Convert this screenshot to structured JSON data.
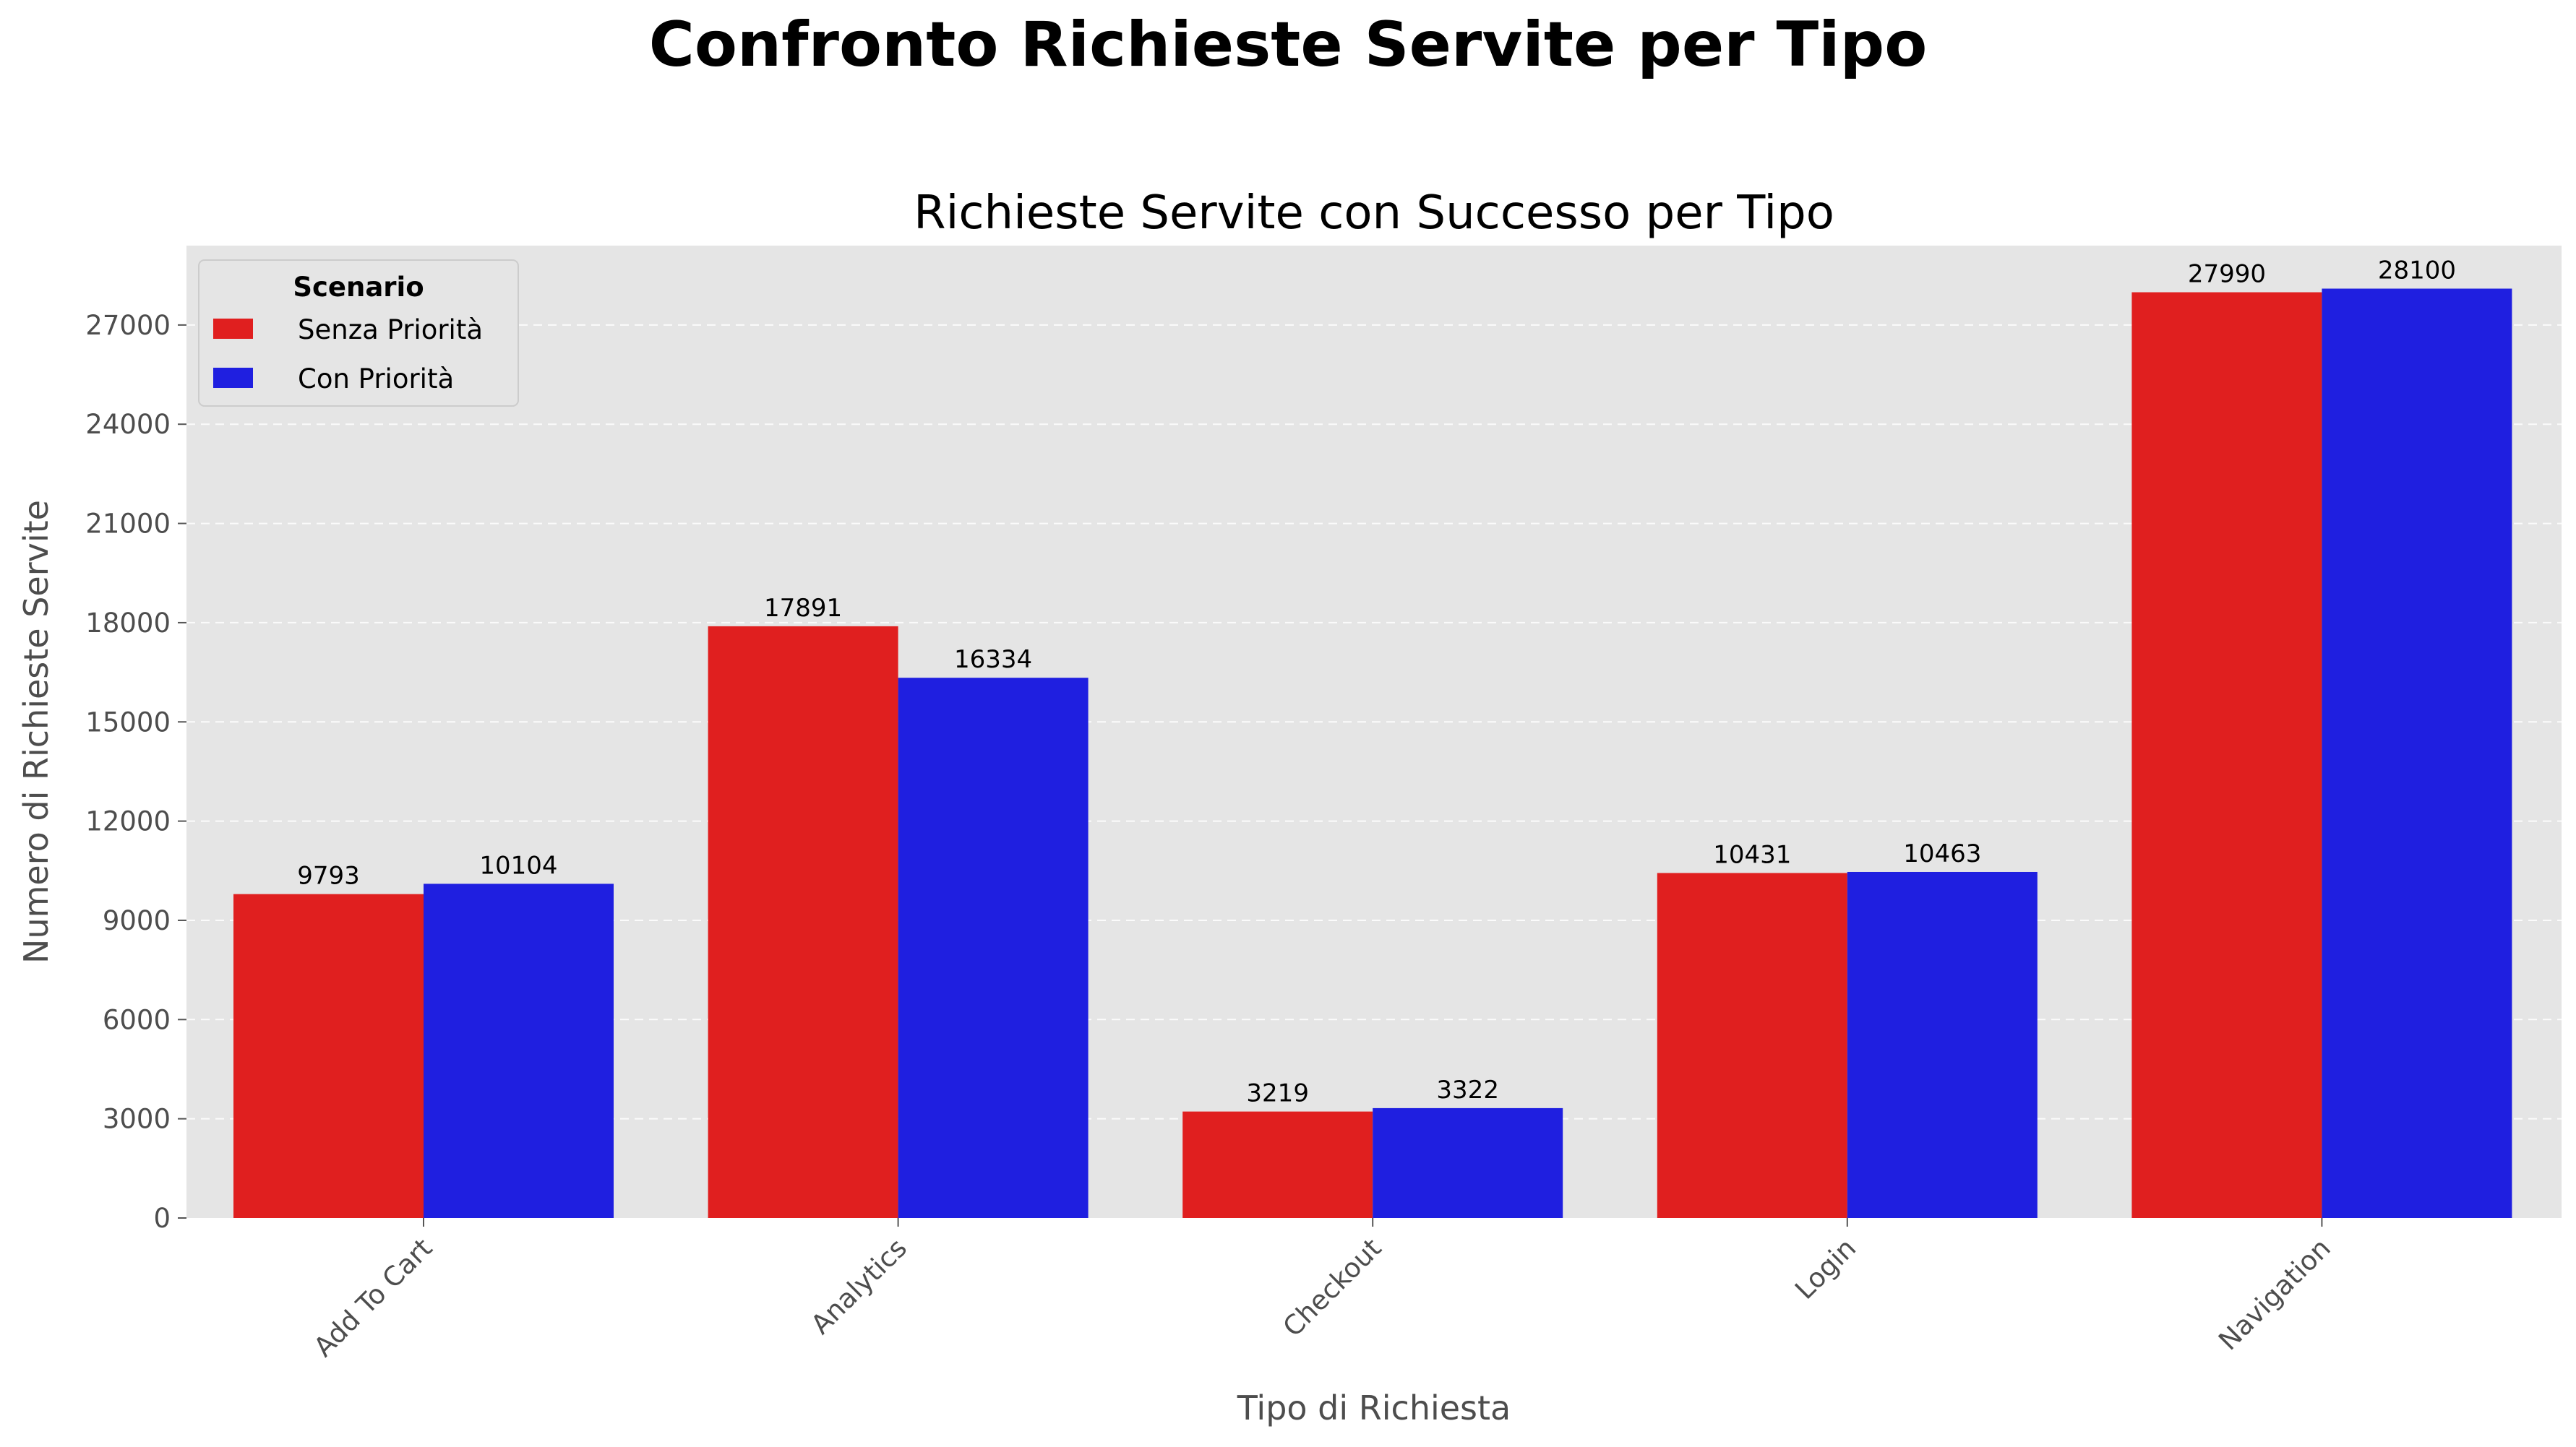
{
  "suptitle": "Confronto Richieste Servite per Tipo",
  "chart_data": {
    "type": "bar",
    "title": "Richieste Servite con Successo per Tipo",
    "xlabel": "Tipo di Richiesta",
    "ylabel": "Numero di Richieste Servite",
    "categories": [
      "Add To Cart",
      "Analytics",
      "Checkout",
      "Login",
      "Navigation"
    ],
    "series": [
      {
        "name": "Senza Priorità",
        "color": "#e01f1f",
        "values": [
          9793,
          17891,
          3219,
          10431,
          27990
        ]
      },
      {
        "name": "Con Priorità",
        "color": "#1f1fe0",
        "values": [
          10104,
          16334,
          3322,
          10463,
          28100
        ]
      }
    ],
    "ylim": [
      0,
      29400
    ],
    "yticks": [
      0,
      3000,
      6000,
      9000,
      12000,
      15000,
      18000,
      21000,
      24000,
      27000
    ],
    "grid": "y, dashed",
    "legend": {
      "title": "Scenario",
      "placement": "top-left"
    },
    "background": "#e5e5e5"
  }
}
